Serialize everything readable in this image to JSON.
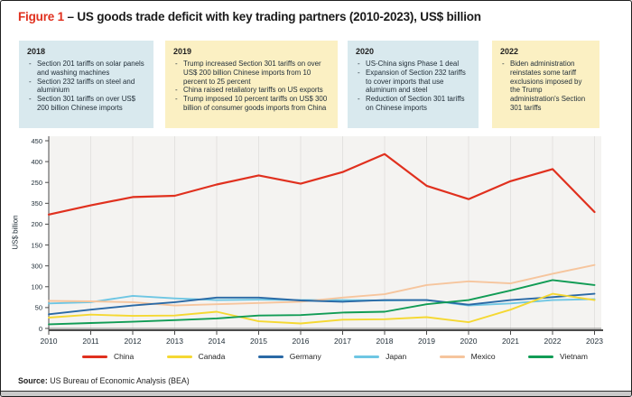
{
  "title": {
    "prefix": "Figure 1",
    "rest": " – US goods trade deficit with key trading partners (2010-2023), US$ billion"
  },
  "annotations": [
    {
      "year": "2018",
      "theme": "blue",
      "bullets": [
        "Section 201 tariffs on solar panels and washing machines",
        "Section 232 tariffs on steel and aluminium",
        "Section 301 tariffs on over US$ 200 billion Chinese imports"
      ]
    },
    {
      "year": "2019",
      "theme": "yellow",
      "bullets": [
        "Trump increased Section 301 tariffs on over US$ 200 billion Chinese imports from 10 percent to 25 percent",
        "China raised retaliatory tariffs on US exports",
        "Trump imposed 10 percent tariffs on US$ 300 billion of consumer goods imports from China"
      ]
    },
    {
      "year": "2020",
      "theme": "blue",
      "bullets": [
        "US-China signs Phase 1 deal",
        "Expansion of Section 232 tariffs to cover imports that use aluminum and steel",
        "Reduction of Section 301 tariffs on Chinese imports"
      ]
    },
    {
      "year": "2022",
      "theme": "yellow",
      "bullets": [
        "Biden administration reinstates some tariff exclusions imposed by the Trump administration's Section 301 tariffs"
      ]
    }
  ],
  "chart_data": {
    "type": "line",
    "title": "US goods trade deficit with key trading partners (2010-2023), US$ billion",
    "xlabel": "",
    "ylabel": "US$ billion",
    "ylim": [
      0,
      450
    ],
    "ytick_labels_top_to_bottom": [
      "450",
      "400",
      "250",
      "350",
      "200",
      "150",
      "300",
      "100",
      "50",
      "0"
    ],
    "axis_note": "y-axis tick labels appear in this scrambled order in the source image; tick positions are evenly spaced",
    "grid": "vertical",
    "legend_position": "bottom",
    "categories": [
      "2010",
      "2011",
      "2012",
      "2013",
      "2014",
      "2015",
      "2016",
      "2017",
      "2018",
      "2019",
      "2020",
      "2021",
      "2022",
      "2023"
    ],
    "series": [
      {
        "name": "China",
        "color": "#e0301e",
        "values": [
          273,
          295,
          315,
          318,
          345,
          367,
          347,
          375,
          418,
          342,
          310,
          353,
          382,
          279
        ]
      },
      {
        "name": "Canada",
        "color": "#f5d832",
        "values": [
          26,
          33,
          30,
          31,
          40,
          17,
          12,
          21,
          22,
          27,
          15,
          45,
          83,
          68
        ]
      },
      {
        "name": "Germany",
        "color": "#2a69a5",
        "values": [
          34,
          45,
          55,
          63,
          74,
          74,
          67,
          64,
          68,
          68,
          57,
          68,
          75,
          83
        ]
      },
      {
        "name": "Japan",
        "color": "#6ec6e3",
        "values": [
          60,
          63,
          78,
          72,
          68,
          69,
          68,
          68,
          67,
          68,
          55,
          60,
          68,
          70
        ]
      },
      {
        "name": "Mexico",
        "color": "#f6c59d",
        "values": [
          66,
          65,
          63,
          55,
          58,
          61,
          64,
          74,
          82,
          104,
          113,
          108,
          131,
          152
        ]
      },
      {
        "name": "Vietnam",
        "color": "#119c55",
        "values": [
          10,
          13,
          16,
          20,
          24,
          31,
          32,
          38,
          40,
          58,
          68,
          91,
          116,
          104
        ]
      }
    ]
  },
  "source": {
    "label": "Source:",
    "text": " US Bureau of Economic Analysis (BEA)"
  },
  "colors": {
    "accent_red": "#e0301e",
    "note_blue": "#d9e9ee",
    "note_yellow": "#fbf0c3",
    "plot_background": "#f4f3f1",
    "gridline": "#e3e2e0",
    "axis": "#4a4a4a",
    "zero_line": "#9d9d9b"
  }
}
